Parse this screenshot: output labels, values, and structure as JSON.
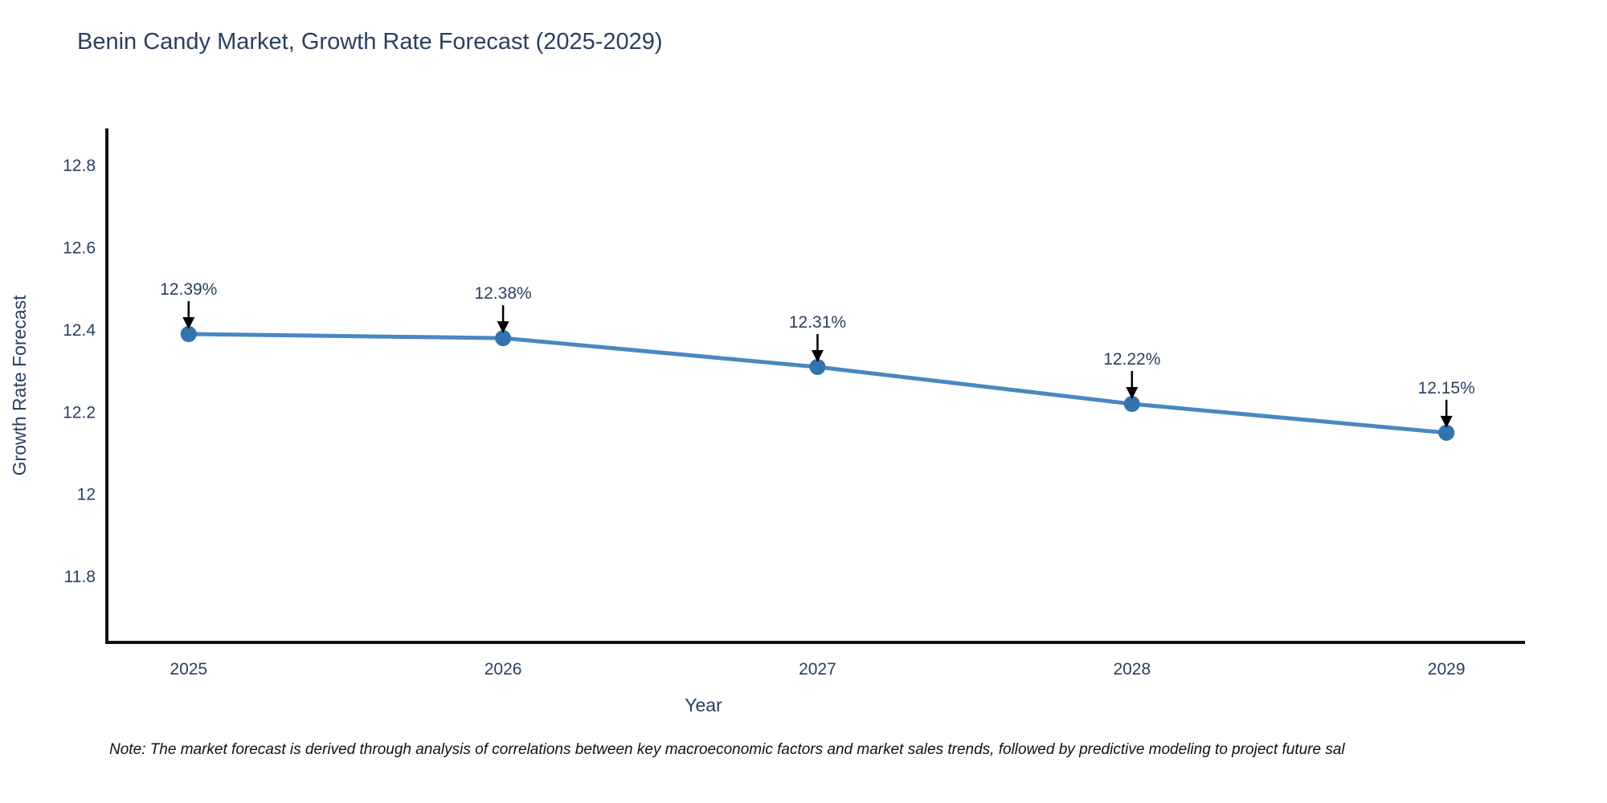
{
  "figure": {
    "note": "Note: The market forecast is derived through analysis of correlations between key macroeconomic factors and market sales trends, followed by predictive modeling to project future sal"
  },
  "chart_data": {
    "type": "line",
    "title": "Benin Candy Market, Growth Rate Forecast (2025-2029)",
    "xlabel": "Year",
    "ylabel": "Growth Rate Forecast",
    "x": [
      2025,
      2026,
      2027,
      2028,
      2029
    ],
    "y": [
      12.39,
      12.38,
      12.31,
      12.22,
      12.15
    ],
    "point_labels": [
      "12.39%",
      "12.38%",
      "12.31%",
      "12.22%",
      "12.15%"
    ],
    "x_tick_labels": [
      "2025",
      "2026",
      "2027",
      "2028",
      "2029"
    ],
    "y_ticks": [
      11.8,
      12.0,
      12.2,
      12.4,
      12.6,
      12.8
    ],
    "y_tick_labels": [
      "11.8",
      "12",
      "12.2",
      "12.4",
      "12.6",
      "12.8"
    ],
    "xlim": [
      2024.74,
      2029.25
    ],
    "ylim": [
      11.64,
      12.89
    ],
    "grid": false,
    "legend": "none",
    "annotations": "black down-arrows from value labels to markers",
    "colors": {
      "line": "#4a87c1",
      "marker": "#3273b0",
      "axis": "#111111",
      "text": "#2a3f5f",
      "annotation_arrow": "#000000",
      "note_text": "#111111",
      "background": "#ffffff"
    }
  }
}
